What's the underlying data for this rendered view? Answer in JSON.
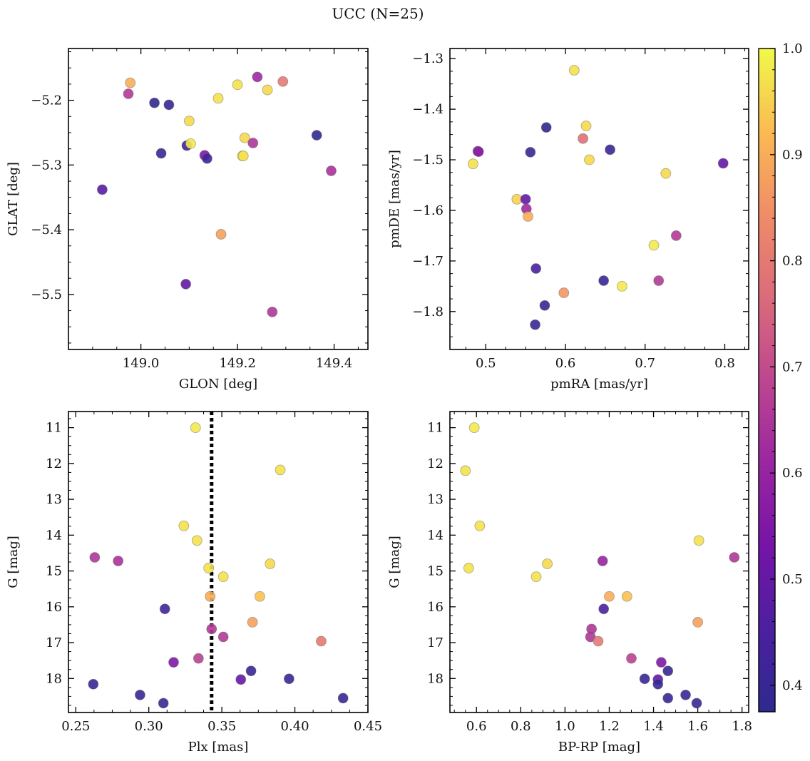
{
  "figure_title": "UCC (N=25)",
  "colorbar": {
    "range": [
      0.375,
      1.0
    ],
    "ticks": [
      "0.4",
      "0.5",
      "0.6",
      "0.7",
      "0.8",
      "0.9",
      "1.0"
    ],
    "colormap": "plasma"
  },
  "chart_data": [
    {
      "type": "scatter",
      "id": "glon-glat",
      "xlabel": "GLON [deg]",
      "ylabel": "GLAT [deg]",
      "xlim": [
        148.85,
        149.47
      ],
      "ylim": [
        -5.585,
        -5.12
      ],
      "xticks": [
        "149.0",
        "149.2",
        "149.4"
      ],
      "yticks": [
        "-5.2",
        "-5.3",
        "-5.4",
        "-5.5"
      ],
      "points": [
        {
          "x": 148.92,
          "y": -5.338,
          "p": 0.48
        },
        {
          "x": 148.974,
          "y": -5.19,
          "p": 0.66
        },
        {
          "x": 148.978,
          "y": -5.173,
          "p": 0.9
        },
        {
          "x": 149.028,
          "y": -5.204,
          "p": 0.38
        },
        {
          "x": 149.042,
          "y": -5.282,
          "p": 0.4
        },
        {
          "x": 149.058,
          "y": -5.207,
          "p": 0.4
        },
        {
          "x": 149.093,
          "y": -5.484,
          "p": 0.5
        },
        {
          "x": 149.095,
          "y": -5.27,
          "p": 0.42
        },
        {
          "x": 149.1,
          "y": -5.232,
          "p": 0.96
        },
        {
          "x": 149.103,
          "y": -5.267,
          "p": 0.98
        },
        {
          "x": 149.132,
          "y": -5.285,
          "p": 0.55
        },
        {
          "x": 149.137,
          "y": -5.29,
          "p": 0.42
        },
        {
          "x": 149.16,
          "y": -5.197,
          "p": 0.97
        },
        {
          "x": 149.166,
          "y": -5.407,
          "p": 0.88
        },
        {
          "x": 149.2,
          "y": -5.176,
          "p": 0.97
        },
        {
          "x": 149.21,
          "y": -5.286,
          "p": 0.99
        },
        {
          "x": 149.212,
          "y": -5.286,
          "p": 0.97
        },
        {
          "x": 149.215,
          "y": -5.258,
          "p": 0.96
        },
        {
          "x": 149.232,
          "y": -5.266,
          "p": 0.65
        },
        {
          "x": 149.241,
          "y": -5.164,
          "p": 0.62
        },
        {
          "x": 149.262,
          "y": -5.184,
          "p": 0.96
        },
        {
          "x": 149.272,
          "y": -5.527,
          "p": 0.65
        },
        {
          "x": 149.294,
          "y": -5.171,
          "p": 0.8
        },
        {
          "x": 149.364,
          "y": -5.254,
          "p": 0.38
        },
        {
          "x": 149.394,
          "y": -5.309,
          "p": 0.64
        }
      ]
    },
    {
      "type": "scatter",
      "id": "pmra-pmde",
      "xlabel": "pmRA [mas/yr]",
      "ylabel": "pmDE [mas/yr]",
      "xlim": [
        0.455,
        0.83
      ],
      "ylim": [
        -1.875,
        -1.28
      ],
      "xticks": [
        "0.5",
        "0.6",
        "0.7",
        "0.8"
      ],
      "yticks": [
        "-1.3",
        "-1.4",
        "-1.5",
        "-1.6",
        "-1.7",
        "-1.8"
      ],
      "points": [
        {
          "x": 0.484,
          "y": -1.508,
          "p": 0.97
        },
        {
          "x": 0.49,
          "y": -1.483,
          "p": 0.6
        },
        {
          "x": 0.491,
          "y": -1.484,
          "p": 0.58
        },
        {
          "x": 0.539,
          "y": -1.578,
          "p": 0.95
        },
        {
          "x": 0.55,
          "y": -1.578,
          "p": 0.5
        },
        {
          "x": 0.551,
          "y": -1.597,
          "p": 0.62
        },
        {
          "x": 0.553,
          "y": -1.612,
          "p": 0.9
        },
        {
          "x": 0.556,
          "y": -1.485,
          "p": 0.4
        },
        {
          "x": 0.562,
          "y": -1.826,
          "p": 0.4
        },
        {
          "x": 0.563,
          "y": -1.715,
          "p": 0.45
        },
        {
          "x": 0.574,
          "y": -1.788,
          "p": 0.4
        },
        {
          "x": 0.576,
          "y": -1.436,
          "p": 0.38
        },
        {
          "x": 0.598,
          "y": -1.763,
          "p": 0.86
        },
        {
          "x": 0.611,
          "y": -1.323,
          "p": 0.97
        },
        {
          "x": 0.622,
          "y": -1.458,
          "p": 0.78
        },
        {
          "x": 0.626,
          "y": -1.433,
          "p": 0.96
        },
        {
          "x": 0.63,
          "y": -1.5,
          "p": 0.96
        },
        {
          "x": 0.648,
          "y": -1.739,
          "p": 0.4
        },
        {
          "x": 0.656,
          "y": -1.48,
          "p": 0.4
        },
        {
          "x": 0.671,
          "y": -1.75,
          "p": 0.98
        },
        {
          "x": 0.711,
          "y": -1.669,
          "p": 0.98
        },
        {
          "x": 0.717,
          "y": -1.739,
          "p": 0.66
        },
        {
          "x": 0.726,
          "y": -1.527,
          "p": 0.96
        },
        {
          "x": 0.739,
          "y": -1.65,
          "p": 0.66
        },
        {
          "x": 0.798,
          "y": -1.507,
          "p": 0.5
        }
      ]
    },
    {
      "type": "scatter",
      "id": "plx-g",
      "xlabel": "Plx [mas]",
      "ylabel": "G [mag]",
      "xlim": [
        0.245,
        0.45
      ],
      "ylim": [
        18.95,
        10.55
      ],
      "xticks": [
        "0.25",
        "0.30",
        "0.35",
        "0.40",
        "0.45"
      ],
      "yticks": [
        "11",
        "12",
        "13",
        "14",
        "15",
        "16",
        "17",
        "18"
      ],
      "vline": 0.343,
      "points": [
        {
          "x": 0.332,
          "y": 11.0,
          "p": 0.98
        },
        {
          "x": 0.39,
          "y": 12.18,
          "p": 0.97
        },
        {
          "x": 0.324,
          "y": 13.74,
          "p": 0.97
        },
        {
          "x": 0.333,
          "y": 14.15,
          "p": 0.97
        },
        {
          "x": 0.263,
          "y": 14.62,
          "p": 0.65
        },
        {
          "x": 0.279,
          "y": 14.72,
          "p": 0.64
        },
        {
          "x": 0.383,
          "y": 14.8,
          "p": 0.96
        },
        {
          "x": 0.341,
          "y": 14.92,
          "p": 0.97
        },
        {
          "x": 0.351,
          "y": 15.16,
          "p": 0.97
        },
        {
          "x": 0.342,
          "y": 15.71,
          "p": 0.9
        },
        {
          "x": 0.376,
          "y": 15.71,
          "p": 0.93
        },
        {
          "x": 0.311,
          "y": 16.06,
          "p": 0.42
        },
        {
          "x": 0.371,
          "y": 16.43,
          "p": 0.88
        },
        {
          "x": 0.343,
          "y": 16.62,
          "p": 0.66
        },
        {
          "x": 0.351,
          "y": 16.84,
          "p": 0.66
        },
        {
          "x": 0.418,
          "y": 16.96,
          "p": 0.8
        },
        {
          "x": 0.334,
          "y": 17.44,
          "p": 0.68
        },
        {
          "x": 0.317,
          "y": 17.55,
          "p": 0.55
        },
        {
          "x": 0.37,
          "y": 17.79,
          "p": 0.4
        },
        {
          "x": 0.363,
          "y": 18.03,
          "p": 0.5
        },
        {
          "x": 0.396,
          "y": 18.01,
          "p": 0.4
        },
        {
          "x": 0.262,
          "y": 18.16,
          "p": 0.4
        },
        {
          "x": 0.294,
          "y": 18.46,
          "p": 0.4
        },
        {
          "x": 0.433,
          "y": 18.55,
          "p": 0.4
        },
        {
          "x": 0.31,
          "y": 18.69,
          "p": 0.4
        }
      ]
    },
    {
      "type": "scatter",
      "id": "bprp-g",
      "xlabel": "BP-RP [mag]",
      "ylabel": "G [mag]",
      "xlim": [
        0.48,
        1.83
      ],
      "ylim": [
        18.95,
        10.55
      ],
      "xticks": [
        "0.6",
        "0.8",
        "1.0",
        "1.2",
        "1.4",
        "1.6",
        "1.8"
      ],
      "yticks": [
        "11",
        "12",
        "13",
        "14",
        "15",
        "16",
        "17",
        "18"
      ],
      "points": [
        {
          "x": 0.59,
          "y": 11.0,
          "p": 0.98
        },
        {
          "x": 0.55,
          "y": 12.2,
          "p": 0.97
        },
        {
          "x": 0.615,
          "y": 13.74,
          "p": 0.97
        },
        {
          "x": 0.565,
          "y": 14.92,
          "p": 0.97
        },
        {
          "x": 0.92,
          "y": 14.8,
          "p": 0.96
        },
        {
          "x": 0.87,
          "y": 15.16,
          "p": 0.97
        },
        {
          "x": 1.605,
          "y": 14.15,
          "p": 0.97
        },
        {
          "x": 1.765,
          "y": 14.62,
          "p": 0.65
        },
        {
          "x": 1.17,
          "y": 14.72,
          "p": 0.6
        },
        {
          "x": 1.2,
          "y": 15.71,
          "p": 0.9
        },
        {
          "x": 1.28,
          "y": 15.71,
          "p": 0.93
        },
        {
          "x": 1.175,
          "y": 16.06,
          "p": 0.45
        },
        {
          "x": 1.6,
          "y": 16.43,
          "p": 0.88
        },
        {
          "x": 1.12,
          "y": 16.62,
          "p": 0.65
        },
        {
          "x": 1.115,
          "y": 16.84,
          "p": 0.65
        },
        {
          "x": 1.15,
          "y": 16.96,
          "p": 0.8
        },
        {
          "x": 1.3,
          "y": 17.44,
          "p": 0.68
        },
        {
          "x": 1.435,
          "y": 17.55,
          "p": 0.55
        },
        {
          "x": 1.465,
          "y": 17.79,
          "p": 0.4
        },
        {
          "x": 1.36,
          "y": 18.01,
          "p": 0.4
        },
        {
          "x": 1.42,
          "y": 18.03,
          "p": 0.5
        },
        {
          "x": 1.42,
          "y": 18.16,
          "p": 0.4
        },
        {
          "x": 1.465,
          "y": 18.55,
          "p": 0.4
        },
        {
          "x": 1.545,
          "y": 18.46,
          "p": 0.4
        },
        {
          "x": 1.595,
          "y": 18.69,
          "p": 0.4
        }
      ]
    }
  ]
}
